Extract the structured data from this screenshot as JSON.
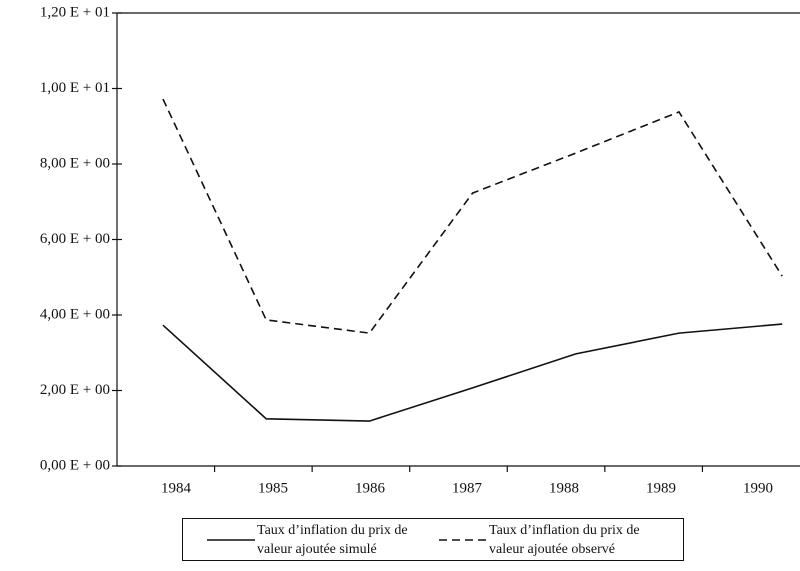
{
  "chart_data": {
    "type": "line",
    "categories": [
      "1984",
      "1985",
      "1986",
      "1987",
      "1988",
      "1989",
      "1990"
    ],
    "series": [
      {
        "name": "Taux d’inflation du prix de valeur ajoutée simulé",
        "color": "#111111",
        "dash": "solid",
        "values": [
          3.73,
          1.25,
          1.19,
          2.07,
          2.97,
          3.52,
          3.76
        ]
      },
      {
        "name": "Taux d’inflation du prix de valeur ajoutée observé",
        "color": "#111111",
        "dash": "dashed",
        "values": [
          9.72,
          3.87,
          3.52,
          7.23,
          8.29,
          9.38,
          5.03
        ]
      }
    ],
    "ylim": [
      0,
      12
    ],
    "yticks": [
      {
        "value": 0,
        "label": "0,00 E + 00"
      },
      {
        "value": 2,
        "label": "2,00 E + 00"
      },
      {
        "value": 4,
        "label": "4,00 E + 00"
      },
      {
        "value": 6,
        "label": "6,00 E + 00"
      },
      {
        "value": 8,
        "label": "8,00 E + 00"
      },
      {
        "value": 10,
        "label": "1,00 E + 01"
      },
      {
        "value": 12,
        "label": "1,20 E + 01"
      }
    ],
    "grid": false
  }
}
